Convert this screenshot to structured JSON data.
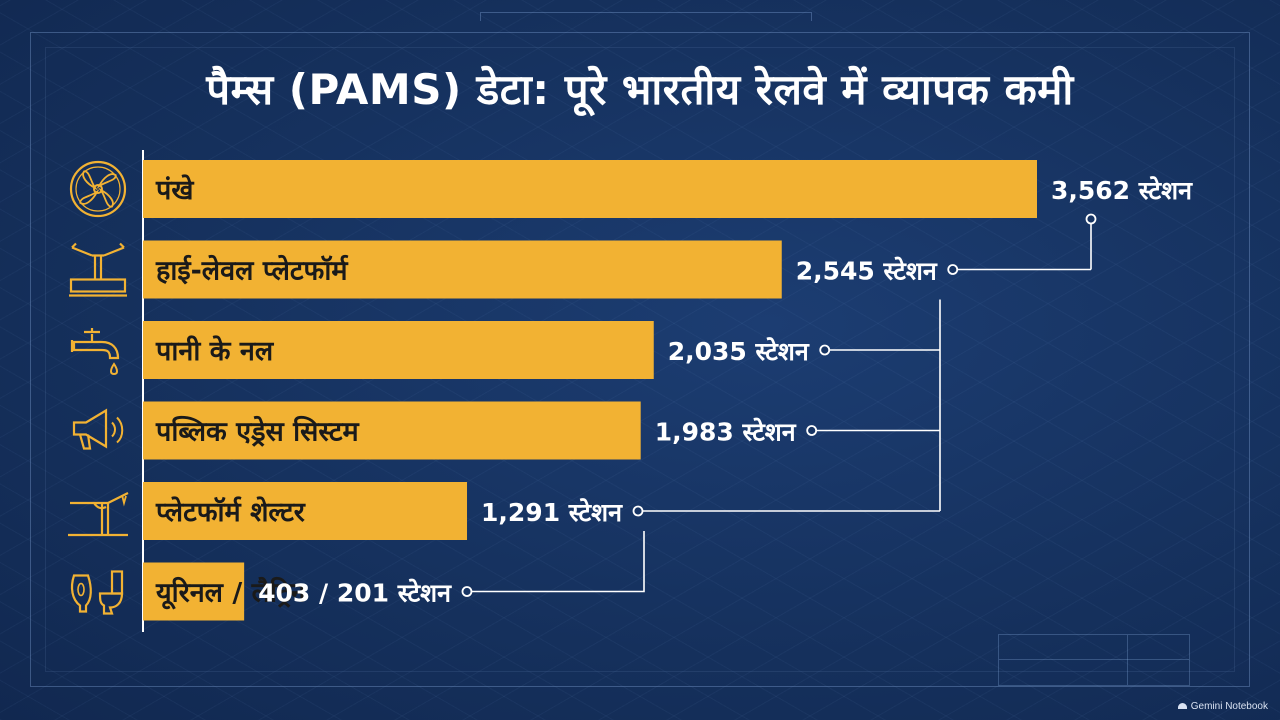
{
  "colors": {
    "background": "#173463",
    "bar": "#f2b233",
    "label_text": "#1a1a1a",
    "value_text": "#ffffff",
    "icon": "#f2b233",
    "connector": "#ffffff"
  },
  "watermark": "Gemini Notebook",
  "chart_data": {
    "type": "bar",
    "orientation": "horizontal",
    "title": "पैम्स (PAMS) डेटा: पूरे भारतीय रेलवे में व्यापक कमी",
    "xlabel": "",
    "ylabel": "",
    "xlim": [
      0,
      3562
    ],
    "grid": false,
    "legend": "none",
    "categories": [
      {
        "label": "पंखे",
        "value": 3562,
        "value_label": "3,562 स्टेशन",
        "icon": "fan-icon"
      },
      {
        "label": "हाई-लेवल प्लेटफॉर्म",
        "value": 2545,
        "value_label": "2,545 स्टेशन",
        "icon": "platform-icon"
      },
      {
        "label": "पानी के नल",
        "value": 2035,
        "value_label": "2,035 स्टेशन",
        "icon": "water-tap-icon"
      },
      {
        "label": "पब्लिक एड्रेस सिस्टम",
        "value": 1983,
        "value_label": "1,983 स्टेशन",
        "icon": "megaphone-icon"
      },
      {
        "label": "प्लेटफॉर्म शेल्टर",
        "value": 1291,
        "value_label": "1,291 स्टेशन",
        "icon": "shelter-icon"
      },
      {
        "label": "यूरिनल / लैट्रिन",
        "value": 403,
        "secondary_value": 201,
        "value_label": "403 / 201 स्टेशन",
        "icon": "toilet-icon"
      }
    ]
  }
}
